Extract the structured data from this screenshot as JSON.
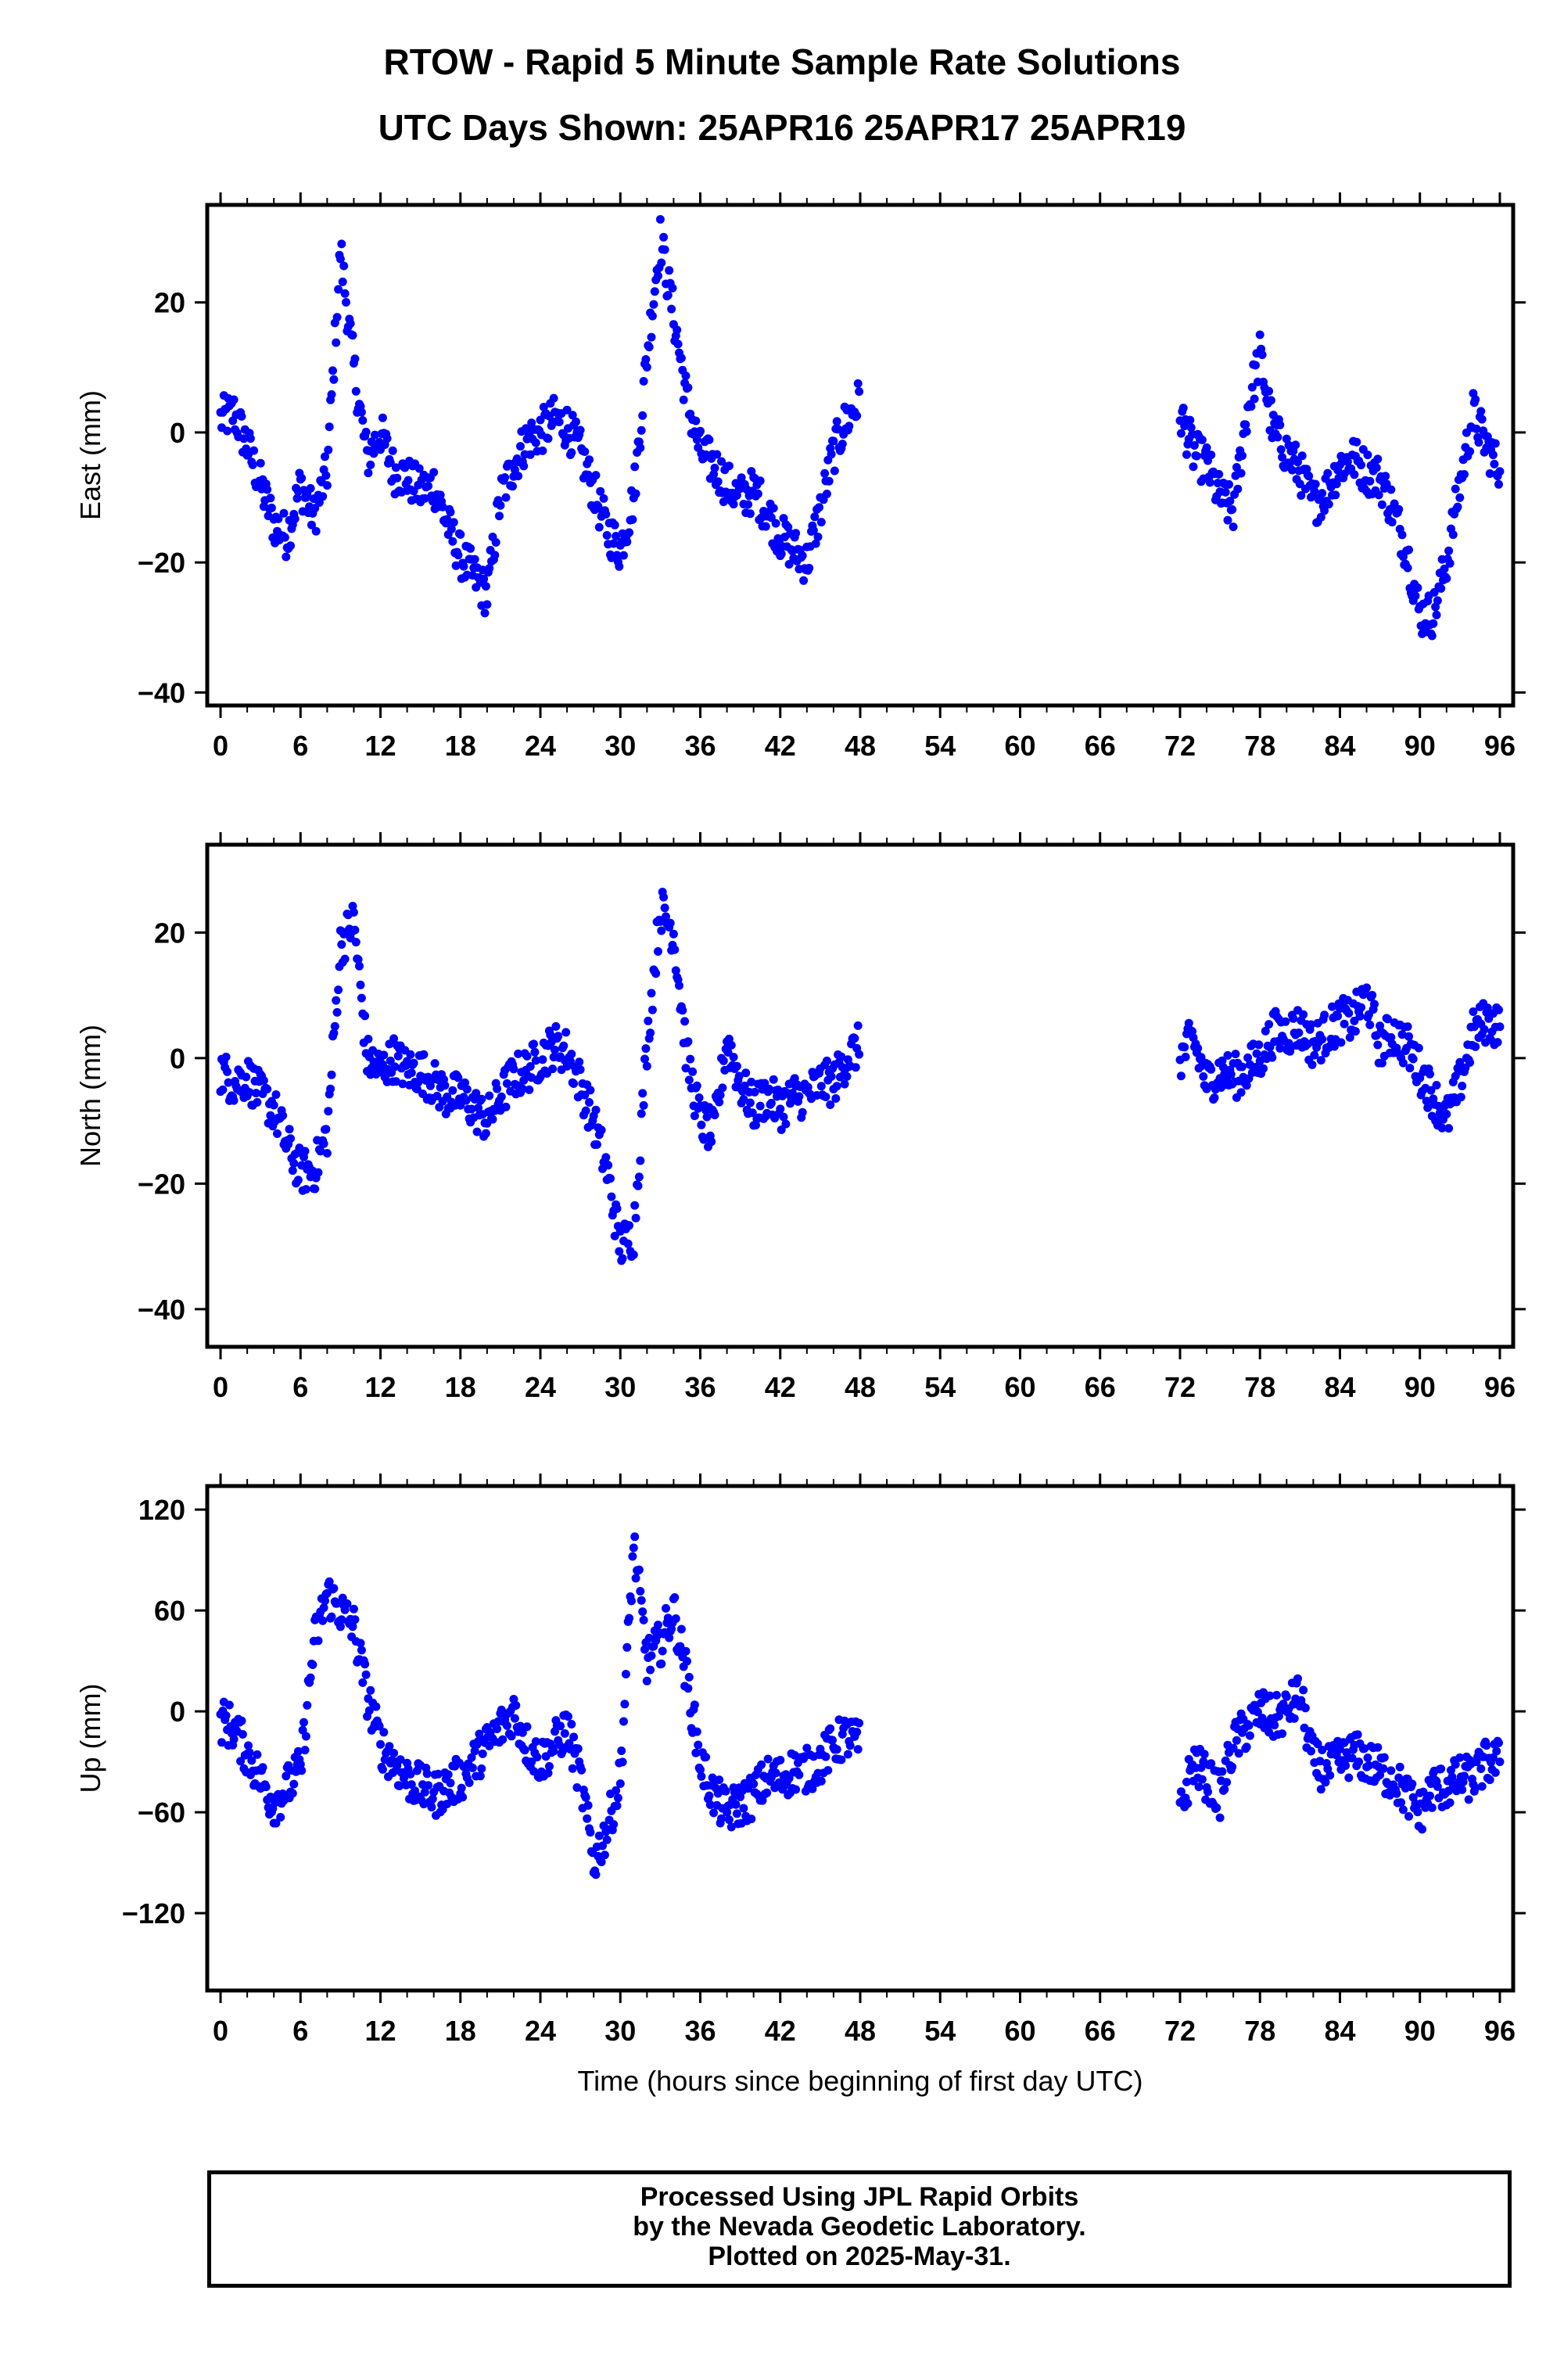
{
  "header": {
    "title": "RTOW - Rapid 5 Minute Sample Rate Solutions",
    "subtitle": "UTC Days Shown:  25APR16 25APR17 25APR19"
  },
  "footer": {
    "line1": "Processed Using JPL Rapid Orbits",
    "line2": "by the Nevada Geodetic Laboratory.",
    "line3": "Plotted on 2025-May-31."
  },
  "colors": {
    "points": "#0000ff",
    "frame": "#000000"
  },
  "chart_data": [
    {
      "type": "scatter",
      "ylabel": "East (mm)",
      "xlabel": "",
      "xlim": [
        -1,
        97
      ],
      "ylim": [
        -42,
        35
      ],
      "xticks": [
        0,
        6,
        12,
        18,
        24,
        30,
        36,
        42,
        48,
        54,
        60,
        66,
        72,
        78,
        84,
        90,
        96
      ],
      "yticks": [
        20,
        0,
        -20,
        -40
      ],
      "tick_labels_y": [
        "20",
        "0",
        "−20",
        "−40"
      ],
      "grid": false,
      "series": [
        {
          "color": "#0000ff",
          "points": [
            [
              0,
              2
            ],
            [
              1,
              3
            ],
            [
              2,
              -2
            ],
            [
              3,
              -8
            ],
            [
              4,
              -14
            ],
            [
              5,
              -16
            ],
            [
              6,
              -8
            ],
            [
              7,
              -13
            ],
            [
              8,
              -6
            ],
            [
              9,
              28
            ],
            [
              10,
              10
            ],
            [
              11,
              -4
            ],
            [
              12,
              0
            ],
            [
              13,
              -6
            ],
            [
              14,
              -7
            ],
            [
              15,
              -9
            ],
            [
              16,
              -8
            ],
            [
              17,
              -14
            ],
            [
              18,
              -19
            ],
            [
              19,
              -22
            ],
            [
              20,
              -25
            ],
            [
              21,
              -10
            ],
            [
              22,
              -5
            ],
            [
              23,
              -1
            ],
            [
              24,
              0
            ],
            [
              25,
              2
            ],
            [
              26,
              1
            ],
            [
              27,
              -3
            ],
            [
              28,
              -9
            ],
            [
              29,
              -15
            ],
            [
              30,
              -18
            ],
            [
              31,
              -10
            ],
            [
              32,
              12
            ],
            [
              33,
              30
            ],
            [
              34,
              18
            ],
            [
              35,
              5
            ],
            [
              36,
              -3
            ],
            [
              37,
              -5
            ],
            [
              38,
              -8
            ],
            [
              39,
              -10
            ],
            [
              40,
              -9
            ],
            [
              41,
              -12
            ],
            [
              42,
              -16
            ],
            [
              43,
              -18
            ],
            [
              44,
              -20
            ],
            [
              45,
              -12
            ],
            [
              46,
              -3
            ],
            [
              47,
              2
            ],
            [
              48,
              5
            ],
            [
              72,
              3
            ],
            [
              73,
              -3
            ],
            [
              74,
              -5
            ],
            [
              75,
              -10
            ],
            [
              76,
              -12
            ],
            [
              77,
              3
            ],
            [
              78,
              12
            ],
            [
              79,
              0
            ],
            [
              80,
              -3
            ],
            [
              81,
              -6
            ],
            [
              82,
              -11
            ],
            [
              83,
              -9
            ],
            [
              84,
              -5
            ],
            [
              85,
              -4
            ],
            [
              86,
              -6
            ],
            [
              87,
              -7
            ],
            [
              88,
              -12
            ],
            [
              89,
              -18
            ],
            [
              90,
              -28
            ],
            [
              91,
              -28
            ],
            [
              92,
              -20
            ],
            [
              93,
              -8
            ],
            [
              94,
              3
            ],
            [
              95,
              -2
            ],
            [
              96,
              -6
            ]
          ]
        }
      ]
    },
    {
      "type": "scatter",
      "ylabel": "North (mm)",
      "xlabel": "",
      "xlim": [
        -1,
        97
      ],
      "ylim": [
        -46,
        34
      ],
      "xticks": [
        0,
        6,
        12,
        18,
        24,
        30,
        36,
        42,
        48,
        54,
        60,
        66,
        72,
        78,
        84,
        90,
        96
      ],
      "yticks": [
        20,
        0,
        -20,
        -40
      ],
      "tick_labels_y": [
        "20",
        "0",
        "−20",
        "−40"
      ],
      "grid": false,
      "series": [
        {
          "color": "#0000ff",
          "points": [
            [
              0,
              -2
            ],
            [
              1,
              -4
            ],
            [
              2,
              -3
            ],
            [
              3,
              -6
            ],
            [
              4,
              -8
            ],
            [
              5,
              -14
            ],
            [
              6,
              -18
            ],
            [
              7,
              -18
            ],
            [
              8,
              -12
            ],
            [
              9,
              18
            ],
            [
              10,
              22
            ],
            [
              11,
              0
            ],
            [
              12,
              -2
            ],
            [
              13,
              0
            ],
            [
              14,
              -2
            ],
            [
              15,
              -2
            ],
            [
              16,
              -4
            ],
            [
              17,
              -6
            ],
            [
              18,
              -6
            ],
            [
              19,
              -8
            ],
            [
              20,
              -10
            ],
            [
              21,
              -6
            ],
            [
              22,
              -3
            ],
            [
              23,
              -2
            ],
            [
              24,
              0
            ],
            [
              25,
              2
            ],
            [
              26,
              1
            ],
            [
              27,
              -4
            ],
            [
              28,
              -10
            ],
            [
              29,
              -18
            ],
            [
              30,
              -30
            ],
            [
              31,
              -28
            ],
            [
              32,
              2
            ],
            [
              33,
              24
            ],
            [
              34,
              20
            ],
            [
              35,
              0
            ],
            [
              36,
              -10
            ],
            [
              37,
              -12
            ],
            [
              38,
              3
            ],
            [
              39,
              -4
            ],
            [
              40,
              -8
            ],
            [
              41,
              -6
            ],
            [
              42,
              -8
            ],
            [
              43,
              -6
            ],
            [
              44,
              -6
            ],
            [
              45,
              -4
            ],
            [
              46,
              -4
            ],
            [
              47,
              0
            ],
            [
              48,
              2
            ],
            [
              72,
              0
            ],
            [
              73,
              3
            ],
            [
              74,
              -4
            ],
            [
              75,
              -2
            ],
            [
              76,
              -3
            ],
            [
              77,
              -2
            ],
            [
              78,
              0
            ],
            [
              79,
              4
            ],
            [
              80,
              4
            ],
            [
              81,
              5
            ],
            [
              82,
              2
            ],
            [
              83,
              4
            ],
            [
              84,
              6
            ],
            [
              85,
              6
            ],
            [
              86,
              10
            ],
            [
              87,
              2
            ],
            [
              88,
              4
            ],
            [
              89,
              2
            ],
            [
              90,
              -2
            ],
            [
              91,
              -6
            ],
            [
              92,
              -10
            ],
            [
              93,
              -4
            ],
            [
              94,
              4
            ],
            [
              95,
              6
            ],
            [
              96,
              5
            ]
          ]
        }
      ]
    },
    {
      "type": "scatter",
      "ylabel": "Up (mm)",
      "xlabel": "Time (hours since beginning of first day UTC)",
      "xlim": [
        -1,
        97
      ],
      "ylim": [
        -166,
        134
      ],
      "xticks": [
        0,
        6,
        12,
        18,
        24,
        30,
        36,
        42,
        48,
        54,
        60,
        66,
        72,
        78,
        84,
        90,
        96
      ],
      "yticks": [
        120,
        60,
        0,
        -60,
        -120
      ],
      "tick_labels_y": [
        "120",
        "60",
        "0",
        "−60",
        "−120"
      ],
      "grid": false,
      "series": [
        {
          "color": "#0000ff",
          "points": [
            [
              0,
              -5
            ],
            [
              1,
              -10
            ],
            [
              2,
              -25
            ],
            [
              3,
              -40
            ],
            [
              4,
              -55
            ],
            [
              5,
              -45
            ],
            [
              6,
              -35
            ],
            [
              7,
              40
            ],
            [
              8,
              70
            ],
            [
              9,
              60
            ],
            [
              10,
              50
            ],
            [
              11,
              10
            ],
            [
              12,
              -20
            ],
            [
              13,
              -30
            ],
            [
              14,
              -40
            ],
            [
              15,
              -45
            ],
            [
              16,
              -50
            ],
            [
              17,
              -45
            ],
            [
              18,
              -40
            ],
            [
              19,
              -30
            ],
            [
              20,
              -20
            ],
            [
              21,
              -10
            ],
            [
              22,
              0
            ],
            [
              23,
              -20
            ],
            [
              24,
              -30
            ],
            [
              25,
              -20
            ],
            [
              26,
              -10
            ],
            [
              27,
              -40
            ],
            [
              28,
              -90
            ],
            [
              29,
              -70
            ],
            [
              30,
              -40
            ],
            [
              31,
              100
            ],
            [
              32,
              30
            ],
            [
              33,
              40
            ],
            [
              34,
              60
            ],
            [
              35,
              20
            ],
            [
              36,
              -30
            ],
            [
              37,
              -50
            ],
            [
              38,
              -60
            ],
            [
              39,
              -55
            ],
            [
              40,
              -50
            ],
            [
              41,
              -40
            ],
            [
              42,
              -40
            ],
            [
              43,
              -35
            ],
            [
              44,
              -35
            ],
            [
              45,
              -30
            ],
            [
              46,
              -20
            ],
            [
              47,
              -15
            ],
            [
              48,
              -20
            ],
            [
              72,
              -60
            ],
            [
              73,
              -30
            ],
            [
              74,
              -40
            ],
            [
              75,
              -50
            ],
            [
              76,
              -20
            ],
            [
              77,
              -10
            ],
            [
              78,
              0
            ],
            [
              79,
              -5
            ],
            [
              80,
              0
            ],
            [
              81,
              10
            ],
            [
              82,
              -30
            ],
            [
              83,
              -35
            ],
            [
              84,
              -30
            ],
            [
              85,
              -25
            ],
            [
              86,
              -30
            ],
            [
              87,
              -35
            ],
            [
              88,
              -40
            ],
            [
              89,
              -50
            ],
            [
              90,
              -60
            ],
            [
              91,
              -45
            ],
            [
              92,
              -45
            ],
            [
              93,
              -40
            ],
            [
              94,
              -40
            ],
            [
              95,
              -30
            ],
            [
              96,
              -30
            ]
          ]
        }
      ]
    }
  ]
}
